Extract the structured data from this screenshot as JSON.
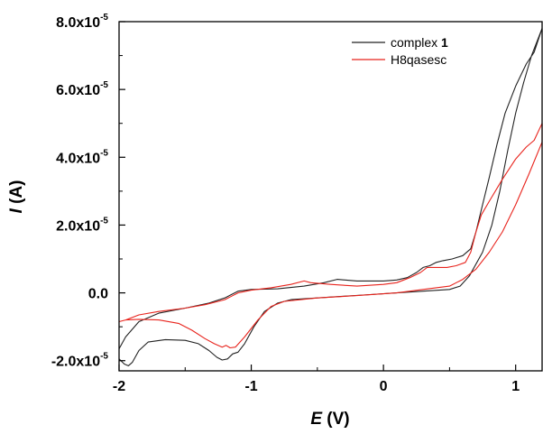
{
  "chart_data": {
    "type": "line",
    "xlabel": {
      "italic": "E",
      "rest": " (V)"
    },
    "ylabel": {
      "italic": "I",
      "rest": " (A)"
    },
    "xlim": [
      -2,
      1.2
    ],
    "ylim": [
      -2.3e-05,
      8e-05
    ],
    "x_ticks": [
      {
        "value": -2,
        "label": "-2"
      },
      {
        "value": -1,
        "label": "-1"
      },
      {
        "value": 0,
        "label": "0"
      },
      {
        "value": 1,
        "label": "1"
      }
    ],
    "y_ticks": [
      {
        "value": -2e-05,
        "mant": "-2.0x10",
        "exp": "-5"
      },
      {
        "value": 0,
        "mant": "0.0",
        "exp": ""
      },
      {
        "value": 2e-05,
        "mant": "2.0x10",
        "exp": "-5"
      },
      {
        "value": 4e-05,
        "mant": "4.0x10",
        "exp": "-5"
      },
      {
        "value": 6e-05,
        "mant": "6.0x10",
        "exp": "-5"
      },
      {
        "value": 8e-05,
        "mant": "8.0x10",
        "exp": "-5"
      }
    ],
    "legend": {
      "position": "top-right",
      "items": [
        {
          "label": "complex ",
          "bold": "1",
          "color": "#222222"
        },
        {
          "label": "H8qasesc",
          "bold": "",
          "color": "#e8231c"
        }
      ]
    },
    "series": [
      {
        "name": "complex 1",
        "color": "#222222",
        "points": [
          [
            -2.0,
            -1.95e-05
          ],
          [
            -1.96,
            -2.1e-05
          ],
          [
            -1.93,
            -2.15e-05
          ],
          [
            -1.9,
            -2.05e-05
          ],
          [
            -1.85,
            -1.7e-05
          ],
          [
            -1.78,
            -1.45e-05
          ],
          [
            -1.65,
            -1.38e-05
          ],
          [
            -1.5,
            -1.4e-05
          ],
          [
            -1.4,
            -1.5e-05
          ],
          [
            -1.32,
            -1.7e-05
          ],
          [
            -1.26,
            -1.9e-05
          ],
          [
            -1.22,
            -1.98e-05
          ],
          [
            -1.18,
            -1.95e-05
          ],
          [
            -1.14,
            -1.8e-05
          ],
          [
            -1.1,
            -1.75e-05
          ],
          [
            -1.05,
            -1.5e-05
          ],
          [
            -0.98,
            -1e-05
          ],
          [
            -0.9,
            -5.5e-06
          ],
          [
            -0.8,
            -3e-06
          ],
          [
            -0.7,
            -2e-06
          ],
          [
            -0.5,
            -1.5e-06
          ],
          [
            -0.3,
            -1e-06
          ],
          [
            -0.1,
            -5e-07
          ],
          [
            0.1,
            0.0
          ],
          [
            0.3,
            5e-07
          ],
          [
            0.5,
            1e-06
          ],
          [
            0.58,
            2e-06
          ],
          [
            0.65,
            5e-06
          ],
          [
            0.75,
            1.2e-05
          ],
          [
            0.82,
            2e-05
          ],
          [
            0.88,
            3e-05
          ],
          [
            0.94,
            4.2e-05
          ],
          [
            1.0,
            5.3e-05
          ],
          [
            1.06,
            6.2e-05
          ],
          [
            1.12,
            7e-05
          ],
          [
            1.2,
            7.8e-05
          ],
          [
            1.2,
            7.8e-05
          ],
          [
            1.14,
            7.1e-05
          ],
          [
            1.08,
            6.75e-05
          ],
          [
            1.0,
            6.1e-05
          ],
          [
            0.92,
            5.3e-05
          ],
          [
            0.86,
            4.4e-05
          ],
          [
            0.8,
            3.4e-05
          ],
          [
            0.75,
            2.6e-05
          ],
          [
            0.7,
            1.8e-05
          ],
          [
            0.66,
            1.3e-05
          ],
          [
            0.6,
            1.1e-05
          ],
          [
            0.52,
            1e-05
          ],
          [
            0.45,
            9.5e-06
          ],
          [
            0.4,
            9e-06
          ],
          [
            0.35,
            8e-06
          ],
          [
            0.3,
            7.5e-06
          ],
          [
            0.25,
            6e-06
          ],
          [
            0.18,
            4.5e-06
          ],
          [
            0.1,
            3.8e-06
          ],
          [
            0.0,
            3.5e-06
          ],
          [
            -0.2,
            3.5e-06
          ],
          [
            -0.35,
            4e-06
          ],
          [
            -0.45,
            3e-06
          ],
          [
            -0.6,
            2e-06
          ],
          [
            -0.8,
            1.2e-06
          ],
          [
            -1.0,
            1e-06
          ],
          [
            -1.1,
            5e-07
          ],
          [
            -1.2,
            -1.5e-06
          ],
          [
            -1.32,
            -3e-06
          ],
          [
            -1.5,
            -4.5e-06
          ],
          [
            -1.7,
            -6e-06
          ],
          [
            -1.85,
            -8.5e-06
          ],
          [
            -1.95,
            -1.3e-05
          ],
          [
            -2.0,
            -1.65e-05
          ]
        ]
      },
      {
        "name": "H8qasesc",
        "color": "#e8231c",
        "points": [
          [
            -2.0,
            -8.5e-06
          ],
          [
            -1.95,
            -8e-06
          ],
          [
            -1.85,
            -7.8e-06
          ],
          [
            -1.7,
            -8e-06
          ],
          [
            -1.55,
            -9e-06
          ],
          [
            -1.45,
            -1.1e-05
          ],
          [
            -1.35,
            -1.35e-05
          ],
          [
            -1.28,
            -1.5e-05
          ],
          [
            -1.22,
            -1.6e-05
          ],
          [
            -1.19,
            -1.55e-05
          ],
          [
            -1.16,
            -1.62e-05
          ],
          [
            -1.12,
            -1.6e-05
          ],
          [
            -1.05,
            -1.3e-05
          ],
          [
            -0.95,
            -8e-06
          ],
          [
            -0.85,
            -4e-06
          ],
          [
            -0.75,
            -2.5e-06
          ],
          [
            -0.5,
            -1.5e-06
          ],
          [
            -0.2,
            -8e-07
          ],
          [
            0.1,
            0.0
          ],
          [
            0.3,
            1e-06
          ],
          [
            0.5,
            2e-06
          ],
          [
            0.6,
            4e-06
          ],
          [
            0.7,
            7e-06
          ],
          [
            0.8,
            1.2e-05
          ],
          [
            0.9,
            1.8e-05
          ],
          [
            1.0,
            2.6e-05
          ],
          [
            1.1,
            3.5e-05
          ],
          [
            1.2,
            4.45e-05
          ],
          [
            1.2,
            5e-05
          ],
          [
            1.14,
            4.5e-05
          ],
          [
            1.08,
            4.3e-05
          ],
          [
            1.0,
            3.95e-05
          ],
          [
            0.9,
            3.35e-05
          ],
          [
            0.8,
            2.7e-05
          ],
          [
            0.74,
            2.3e-05
          ],
          [
            0.7,
            1.8e-05
          ],
          [
            0.66,
            1.2e-05
          ],
          [
            0.62,
            9e-06
          ],
          [
            0.55,
            8e-06
          ],
          [
            0.48,
            7.5e-06
          ],
          [
            0.4,
            7.5e-06
          ],
          [
            0.33,
            7.5e-06
          ],
          [
            0.28,
            6e-06
          ],
          [
            0.2,
            4.5e-06
          ],
          [
            0.1,
            3e-06
          ],
          [
            0.0,
            2.5e-06
          ],
          [
            -0.2,
            2e-06
          ],
          [
            -0.4,
            2.5e-06
          ],
          [
            -0.55,
            3e-06
          ],
          [
            -0.6,
            3.5e-06
          ],
          [
            -0.7,
            2.5e-06
          ],
          [
            -0.85,
            1.5e-06
          ],
          [
            -1.0,
            8e-07
          ],
          [
            -1.1,
            0.0
          ],
          [
            -1.2,
            -2e-06
          ],
          [
            -1.35,
            -3.5e-06
          ],
          [
            -1.5,
            -4.5e-06
          ],
          [
            -1.7,
            -5.5e-06
          ],
          [
            -1.85,
            -6.5e-06
          ],
          [
            -1.95,
            -8e-06
          ],
          [
            -2.0,
            -8.5e-06
          ]
        ]
      }
    ]
  }
}
